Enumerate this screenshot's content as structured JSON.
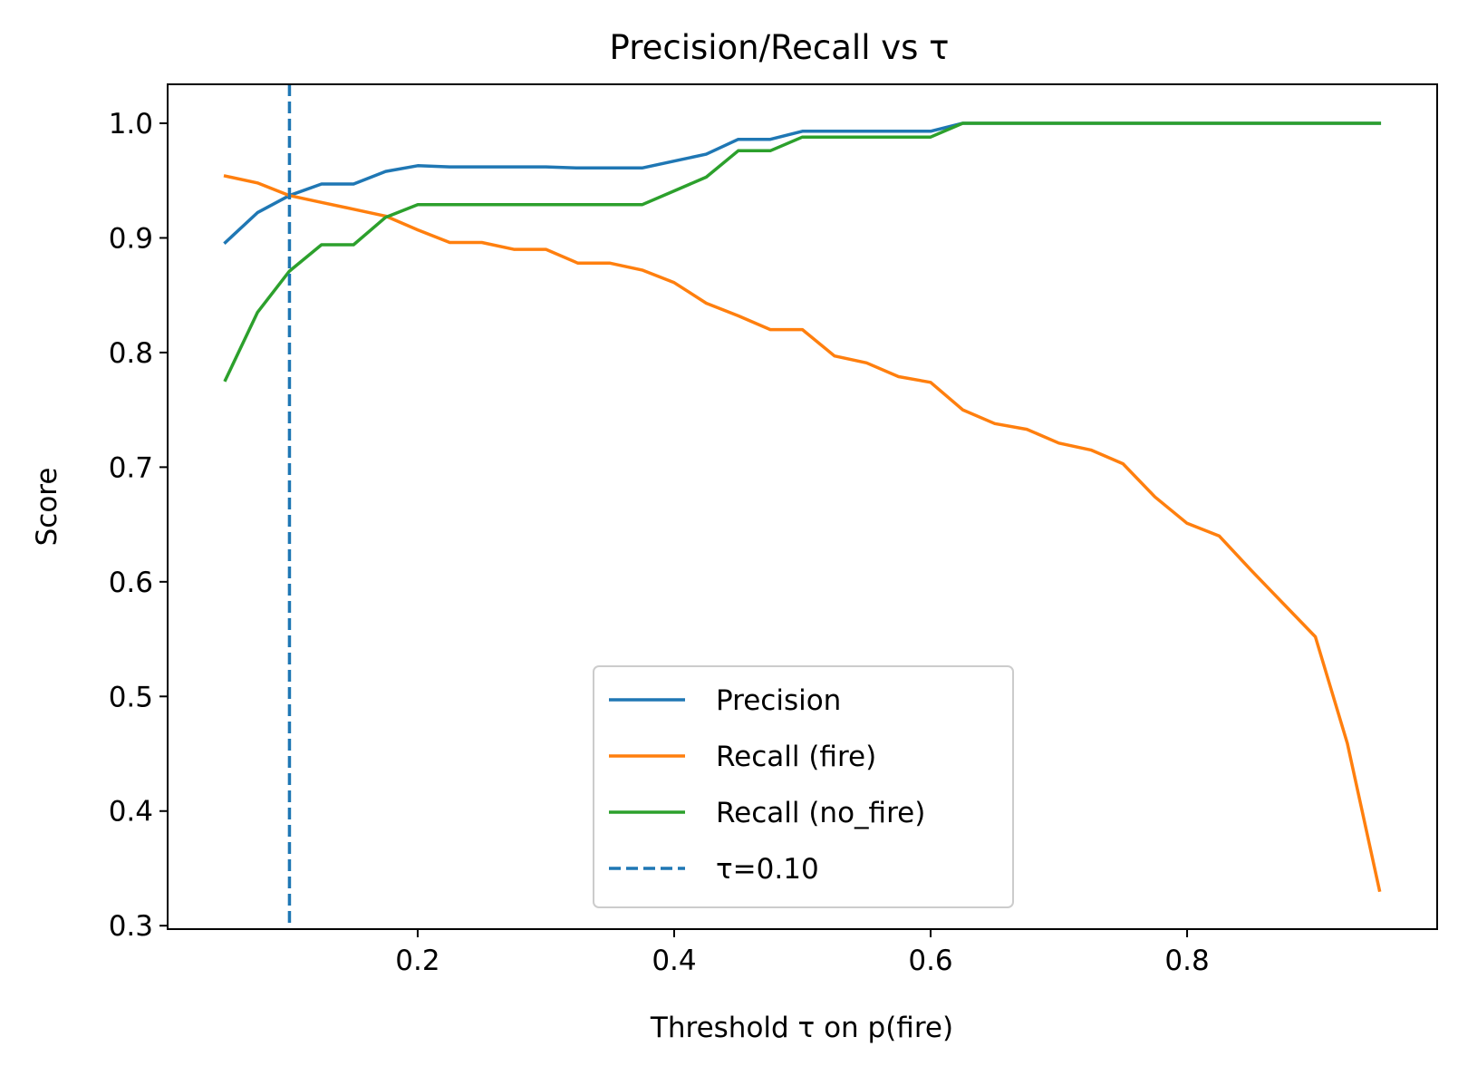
{
  "chart_data": {
    "type": "line",
    "title": "Precision/Recall vs τ",
    "xlabel": "Threshold τ on p(fire)",
    "ylabel": "Score",
    "xlim": [
      0.005,
      0.995
    ],
    "ylim": [
      0.297,
      1.034
    ],
    "xticks": [
      0.2,
      0.4,
      0.6,
      0.8
    ],
    "xtick_labels": [
      "0.2",
      "0.4",
      "0.6",
      "0.8"
    ],
    "yticks": [
      0.3,
      0.4,
      0.5,
      0.6,
      0.7,
      0.8,
      0.9,
      1.0
    ],
    "ytick_labels": [
      "0.3",
      "0.4",
      "0.5",
      "0.6",
      "0.7",
      "0.8",
      "0.9",
      "1.0"
    ],
    "grid": false,
    "legend_position": "lower-center",
    "x": [
      0.05,
      0.075,
      0.1,
      0.125,
      0.15,
      0.175,
      0.2,
      0.225,
      0.25,
      0.275,
      0.3,
      0.325,
      0.35,
      0.375,
      0.4,
      0.425,
      0.45,
      0.475,
      0.5,
      0.525,
      0.55,
      0.575,
      0.6,
      0.625,
      0.65,
      0.675,
      0.7,
      0.725,
      0.75,
      0.775,
      0.8,
      0.825,
      0.85,
      0.875,
      0.9,
      0.925,
      0.95
    ],
    "series": [
      {
        "name": "Precision",
        "color": "#1f77b4",
        "style": "solid",
        "values": [
          0.896,
          0.922,
          0.937,
          0.947,
          0.947,
          0.958,
          0.963,
          0.962,
          0.962,
          0.962,
          0.962,
          0.961,
          0.961,
          0.961,
          0.967,
          0.973,
          0.986,
          0.986,
          0.993,
          0.993,
          0.993,
          0.993,
          0.993,
          1.0,
          1.0,
          1.0,
          1.0,
          1.0,
          1.0,
          1.0,
          1.0,
          1.0,
          1.0,
          1.0,
          1.0,
          1.0,
          1.0
        ]
      },
      {
        "name": "Recall (fire)",
        "color": "#ff7f0e",
        "style": "solid",
        "values": [
          0.954,
          0.948,
          0.937,
          0.931,
          0.925,
          0.919,
          0.907,
          0.896,
          0.896,
          0.89,
          0.89,
          0.878,
          0.878,
          0.872,
          0.861,
          0.843,
          0.832,
          0.82,
          0.82,
          0.797,
          0.791,
          0.779,
          0.774,
          0.75,
          0.738,
          0.733,
          0.721,
          0.715,
          0.703,
          0.674,
          0.651,
          0.64,
          0.61,
          0.581,
          0.552,
          0.459,
          0.331
        ]
      },
      {
        "name": "Recall (no_fire)",
        "color": "#2ca02c",
        "style": "solid",
        "values": [
          0.776,
          0.835,
          0.871,
          0.894,
          0.894,
          0.918,
          0.929,
          0.929,
          0.929,
          0.929,
          0.929,
          0.929,
          0.929,
          0.929,
          0.941,
          0.953,
          0.976,
          0.976,
          0.988,
          0.988,
          0.988,
          0.988,
          0.988,
          1.0,
          1.0,
          1.0,
          1.0,
          1.0,
          1.0,
          1.0,
          1.0,
          1.0,
          1.0,
          1.0,
          1.0,
          1.0,
          1.0
        ]
      }
    ],
    "vline": {
      "name": "τ=0.10",
      "x": 0.1,
      "color": "#1f77b4",
      "style": "dashed"
    }
  }
}
